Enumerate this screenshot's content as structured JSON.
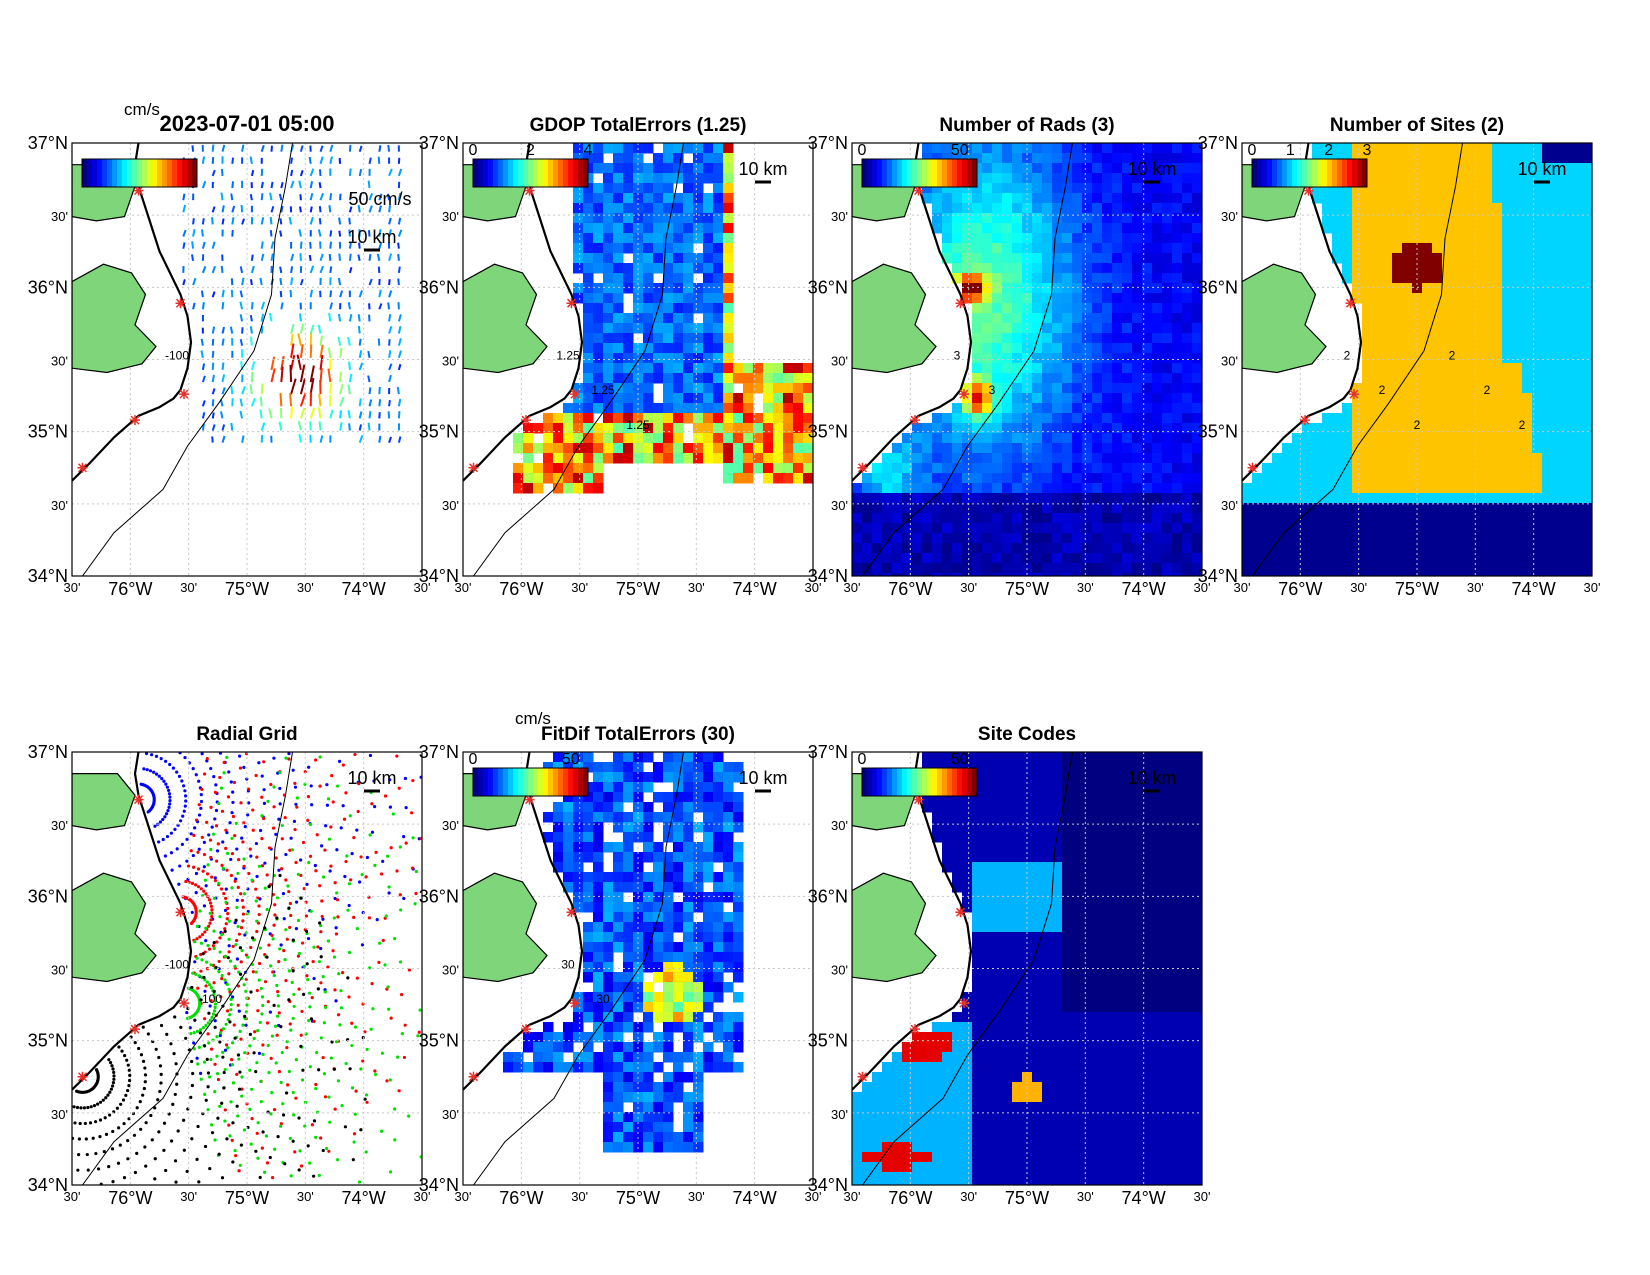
{
  "figure": {
    "ticks": {
      "lat_major": [
        "37°N",
        "36°N",
        "35°N",
        "34°N"
      ],
      "lat_minor": [
        "30'",
        "30'",
        "30'"
      ],
      "lon_labels": [
        "30'",
        "76°W",
        "30'",
        "75°W",
        "30'",
        "74°W",
        "30'"
      ]
    },
    "scale_bar_label": "10 km",
    "contour_label": "-100",
    "panels": [
      {
        "id": "currents",
        "title": "2023-07-01 05:00",
        "units": "cm/s",
        "colorbar_ticks": [],
        "extra_label": "50 cm/s",
        "field": "currents",
        "contour_labels": [
          "-100"
        ]
      },
      {
        "id": "gdop",
        "title": "GDOP TotalErrors (1.25)",
        "units": "",
        "colorbar_ticks": [
          "0",
          "2",
          "4"
        ],
        "extra_label": "",
        "field": "gdop",
        "contour_labels": [
          "1.25",
          "1.25",
          "1.25"
        ]
      },
      {
        "id": "nrads",
        "title": "Number of Rads (3)",
        "units": "",
        "colorbar_ticks": [
          "0",
          "50"
        ],
        "extra_label": "",
        "field": "nrads",
        "contour_labels": [
          "3",
          "3"
        ]
      },
      {
        "id": "nsites",
        "title": "Number of Sites (2)",
        "units": "",
        "colorbar_ticks": [
          "0",
          "1",
          "2",
          "3"
        ],
        "extra_label": "",
        "field": "nsites",
        "contour_labels": [
          "2",
          "2",
          "2",
          "2",
          "2",
          "2"
        ]
      },
      {
        "id": "radial_grid",
        "title": "Radial Grid",
        "units": "",
        "colorbar_ticks": [],
        "extra_label": "",
        "field": "radial",
        "contour_labels": [
          "-100",
          "100"
        ]
      },
      {
        "id": "fitdif",
        "title": "FitDif TotalErrors (30)",
        "units": "cm/s",
        "colorbar_ticks": [
          "0",
          "50"
        ],
        "extra_label": "",
        "field": "fitdif",
        "contour_labels": [
          "30",
          "30"
        ]
      },
      {
        "id": "site_codes",
        "title": "Site Codes",
        "units": "",
        "colorbar_ticks": [
          "0",
          "50"
        ],
        "extra_label": "",
        "field": "sitecodes",
        "contour_labels": []
      }
    ]
  },
  "colors": {
    "land": "#7fd67a",
    "site_marker": "#e8302a",
    "grid_line": "#c8c8c8",
    "colormap": [
      "#00008f",
      "#0000ff",
      "#0080ff",
      "#00ffff",
      "#80ff80",
      "#ffff00",
      "#ff8000",
      "#ff0000",
      "#800000"
    ],
    "nsites_colors": [
      "#00008f",
      "#00d5ff",
      "#ffc400",
      "#800000"
    ],
    "radial_site_colors": [
      "#0000ff",
      "#ff0000",
      "#00e000",
      "#000000"
    ]
  }
}
